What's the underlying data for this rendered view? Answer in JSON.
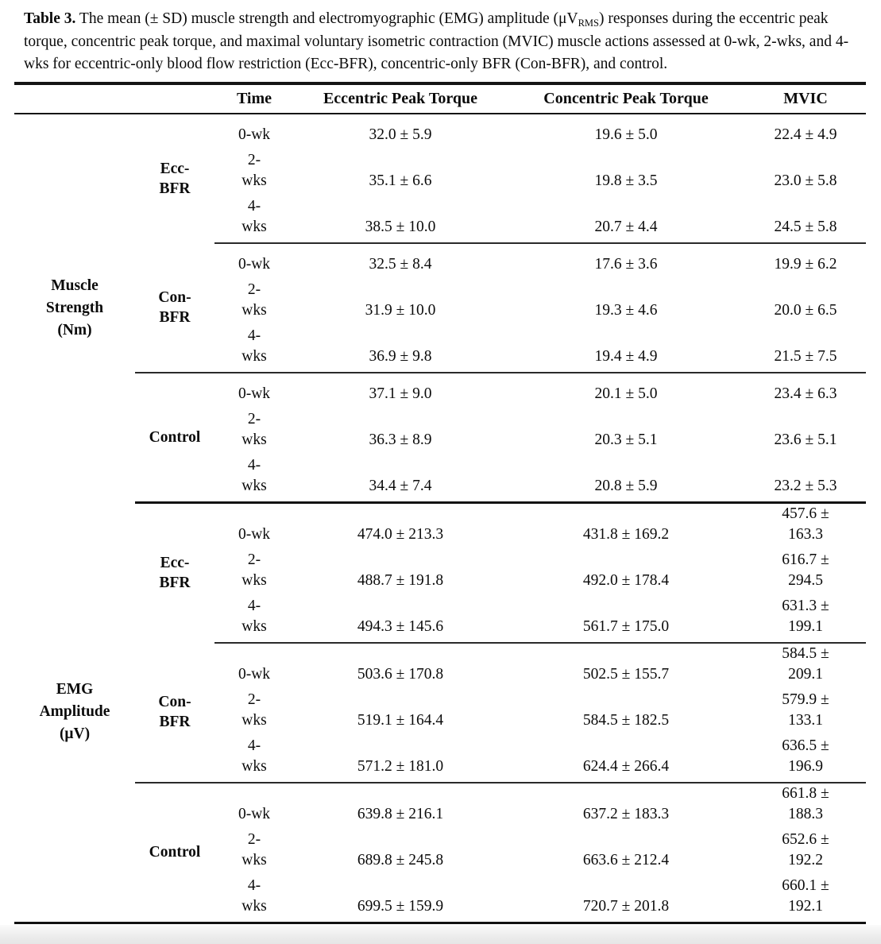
{
  "caption": {
    "label": "Table 3.",
    "text_before_sub": " The mean (± SD) muscle strength and electromyographic (EMG) amplitude (μV",
    "subscript": "RMS",
    "text_after_sub": ") responses during the eccentric peak torque, concentric peak torque, and maximal voluntary isometric contraction (MVIC) muscle actions assessed at 0-wk, 2-wks, and 4-wks for eccentric-only blood flow restriction (Ecc-BFR), concentric-only BFR (Con-BFR), and control."
  },
  "header": {
    "measure": "",
    "group": "",
    "time": "Time",
    "eccentric": "Eccentric Peak Torque",
    "concentric": "Concentric Peak Torque",
    "mvic": "MVIC"
  },
  "table": {
    "sections": [
      {
        "measure": "Muscle\nStrength\n(Nm)",
        "groups": [
          {
            "name": "Ecc-\nBFR",
            "rows": [
              {
                "time": "0-wk",
                "ecc": "32.0 ± 5.9",
                "con": "19.6 ± 5.0",
                "mvic": "22.4 ± 4.9"
              },
              {
                "time": "2-\nwks",
                "ecc": "35.1 ± 6.6",
                "con": "19.8 ± 3.5",
                "mvic": "23.0 ± 5.8"
              },
              {
                "time": "4-\nwks",
                "ecc": "38.5 ± 10.0",
                "con": "20.7 ± 4.4",
                "mvic": "24.5 ± 5.8"
              }
            ]
          },
          {
            "name": "Con-\nBFR",
            "rows": [
              {
                "time": "0-wk",
                "ecc": "32.5 ± 8.4",
                "con": "17.6 ± 3.6",
                "mvic": "19.9 ± 6.2"
              },
              {
                "time": "2-\nwks",
                "ecc": "31.9 ± 10.0",
                "con": "19.3 ± 4.6",
                "mvic": "20.0 ± 6.5"
              },
              {
                "time": "4-\nwks",
                "ecc": "36.9 ± 9.8",
                "con": "19.4 ± 4.9",
                "mvic": "21.5 ± 7.5"
              }
            ]
          },
          {
            "name": "Control",
            "rows": [
              {
                "time": "0-wk",
                "ecc": "37.1 ± 9.0",
                "con": "20.1 ± 5.0",
                "mvic": "23.4 ± 6.3"
              },
              {
                "time": "2-\nwks",
                "ecc": "36.3 ± 8.9",
                "con": "20.3 ± 5.1",
                "mvic": "23.6 ± 5.1"
              },
              {
                "time": "4-\nwks",
                "ecc": "34.4 ± 7.4",
                "con": "20.8 ± 5.9",
                "mvic": "23.2 ± 5.3"
              }
            ]
          }
        ]
      },
      {
        "measure": "EMG\nAmplitude\n(μV)",
        "groups": [
          {
            "name": "Ecc-\nBFR",
            "rows": [
              {
                "time": "0-wk",
                "ecc": "474.0 ± 213.3",
                "con": "431.8 ± 169.2",
                "mvic": "457.6 ±\n163.3"
              },
              {
                "time": "2-\nwks",
                "ecc": "488.7 ± 191.8",
                "con": "492.0 ± 178.4",
                "mvic": "616.7 ±\n294.5"
              },
              {
                "time": "4-\nwks",
                "ecc": "494.3 ± 145.6",
                "con": "561.7 ± 175.0",
                "mvic": "631.3 ±\n199.1"
              }
            ]
          },
          {
            "name": "Con-\nBFR",
            "rows": [
              {
                "time": "0-wk",
                "ecc": "503.6 ± 170.8",
                "con": "502.5 ± 155.7",
                "mvic": "584.5 ±\n209.1"
              },
              {
                "time": "2-\nwks",
                "ecc": "519.1 ± 164.4",
                "con": "584.5 ± 182.5",
                "mvic": "579.9 ±\n133.1"
              },
              {
                "time": "4-\nwks",
                "ecc": "571.2 ± 181.0",
                "con": "624.4 ± 266.4",
                "mvic": "636.5 ±\n196.9"
              }
            ]
          },
          {
            "name": "Control",
            "rows": [
              {
                "time": "0-wk",
                "ecc": "639.8 ± 216.1",
                "con": "637.2 ± 183.3",
                "mvic": "661.8 ±\n188.3"
              },
              {
                "time": "2-\nwks",
                "ecc": "689.8 ± 245.8",
                "con": "663.6 ± 212.4",
                "mvic": "652.6 ±\n192.2"
              },
              {
                "time": "4-\nwks",
                "ecc": "699.5 ± 159.9",
                "con": "720.7 ± 201.8",
                "mvic": "660.1 ±\n192.1"
              }
            ]
          }
        ]
      }
    ]
  }
}
